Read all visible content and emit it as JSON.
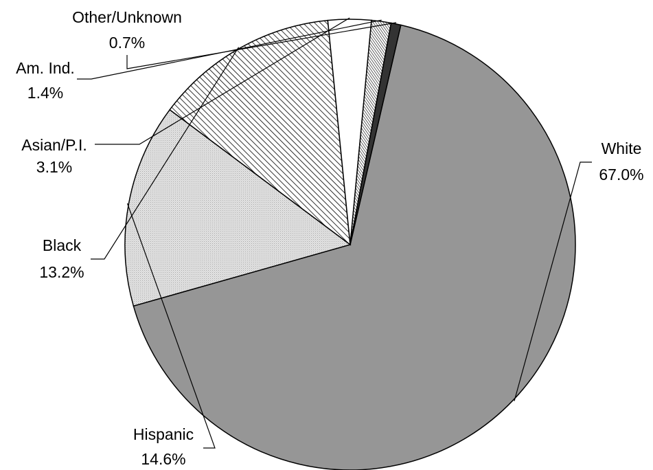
{
  "chart_data": {
    "type": "pie",
    "slices": [
      {
        "label": "White",
        "value": 67.0,
        "value_label": "67.0%",
        "fill": "gray",
        "color": "#969696"
      },
      {
        "label": "Hispanic",
        "value": 14.6,
        "value_label": "14.6%",
        "fill": "light-dotted",
        "color": "#d9d9d9"
      },
      {
        "label": "Black",
        "value": 13.2,
        "value_label": "13.2%",
        "fill": "diagonal-hatch",
        "color": "#ffffff"
      },
      {
        "label": "Asian/P.I.",
        "value": 3.1,
        "value_label": "3.1%",
        "fill": "white",
        "color": "#ffffff"
      },
      {
        "label": "Am. Ind.",
        "value": 1.4,
        "value_label": "1.4%",
        "fill": "vertical-hatch",
        "color": "#ffffff"
      },
      {
        "label": "Other/Unknown",
        "value": 0.7,
        "value_label": "0.7%",
        "fill": "dark",
        "color": "#333333"
      }
    ]
  }
}
